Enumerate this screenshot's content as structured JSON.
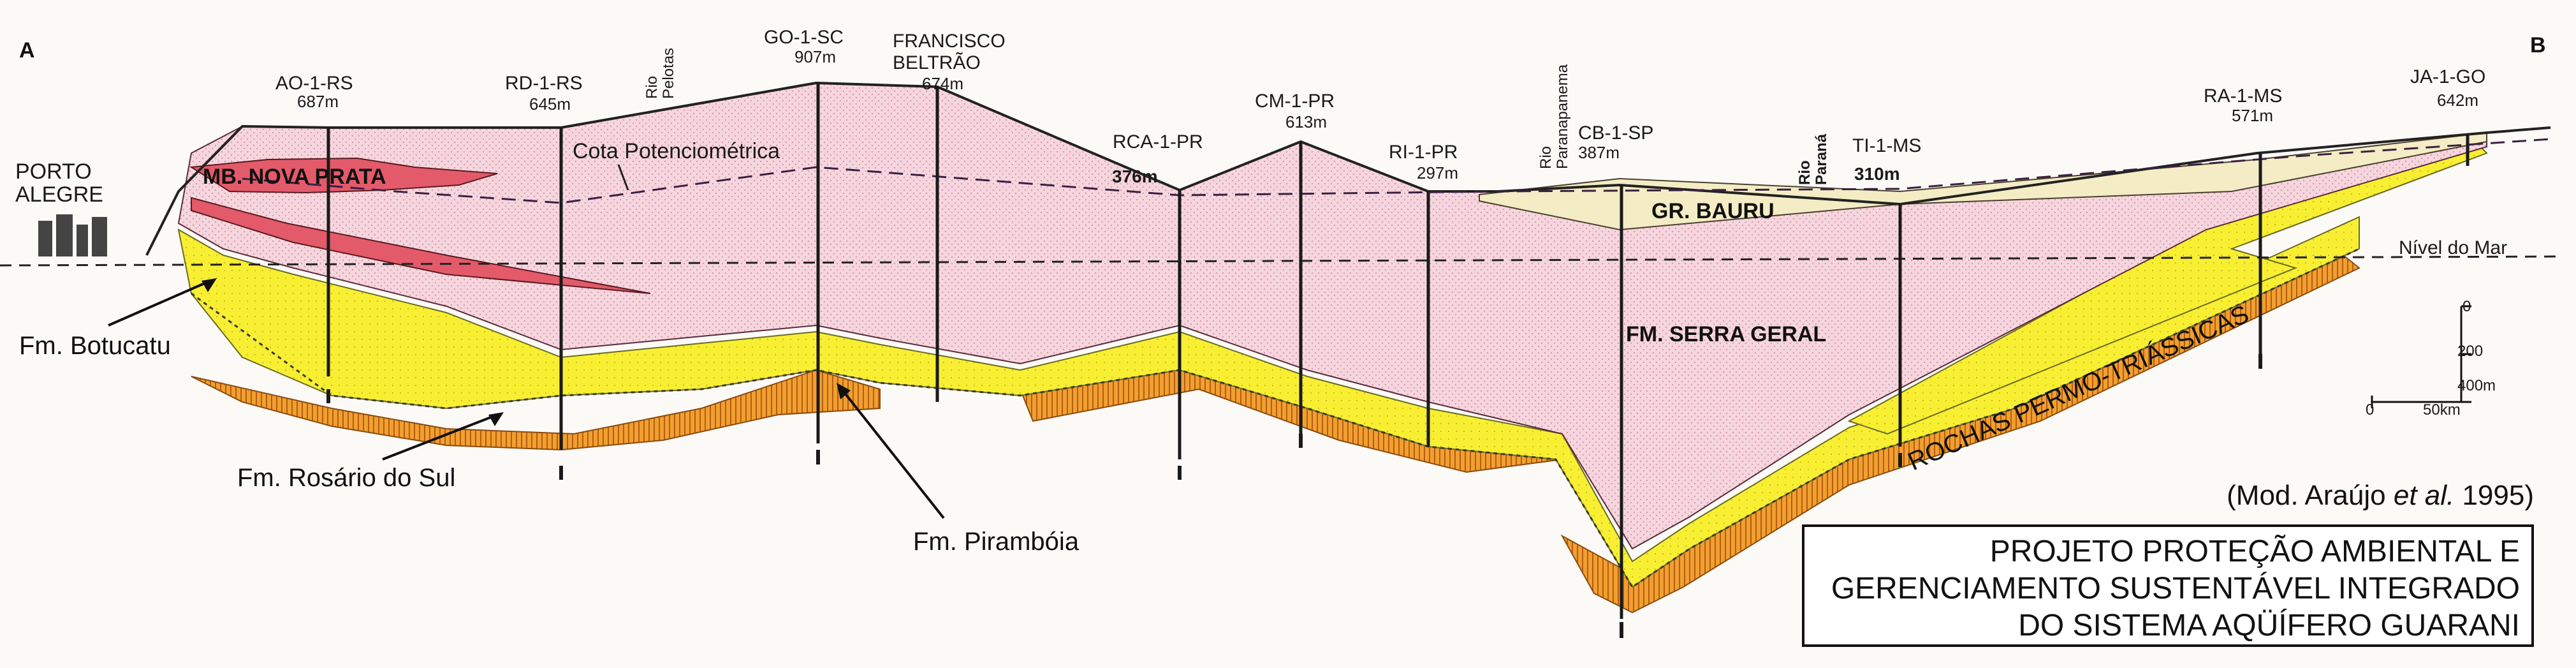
{
  "section": {
    "start_letter": "A",
    "end_letter": "B",
    "wells": [
      {
        "name": "AO-1-RS",
        "elevation": "687m"
      },
      {
        "name": "RD-1-RS",
        "elevation": "645m"
      },
      {
        "name": "GO-1-SC",
        "elevation": "907m"
      },
      {
        "name": "FRANCISCO",
        "name2": "BELTRÃO",
        "elevation": "674m"
      },
      {
        "name": "RCA-1-PR",
        "elevation": "376m"
      },
      {
        "name": "CM-1-PR",
        "elevation": "613m"
      },
      {
        "name": "RI-1-PR",
        "elevation": "297m"
      },
      {
        "name": "CB-1-SP",
        "elevation": "387m"
      },
      {
        "name": "TI-1-MS",
        "elevation": "310m"
      },
      {
        "name": "RA-1-MS",
        "elevation": "571m"
      },
      {
        "name": "JA-1-GO",
        "elevation": "642m"
      }
    ],
    "rivers": {
      "pelotas": [
        "Rio",
        "Pelotas"
      ],
      "paranapanema": [
        "Rio",
        "Paranapanema"
      ],
      "parana": [
        "Rio",
        "Paraná"
      ]
    },
    "city": [
      "PORTO",
      "ALEGRE"
    ],
    "units": {
      "nova_prata": "MB. NOVA PRATA",
      "bauru": "GR. BAURU",
      "serra_geral": "FM. SERRA GERAL",
      "permo": "ROCHAS PERMO-TRIÁSSICAS"
    },
    "annotations": {
      "cota": "Cota Potenciométrica",
      "nivel_mar": "Nível do Mar",
      "botucatu": "Fm. Botucatu",
      "rosario": "Fm. Rosário do Sul",
      "piramboia": "Fm. Pirambóia"
    },
    "scale": {
      "v0": "0",
      "v200": "200",
      "v400": "400m",
      "h0": "0",
      "h50": "50km"
    },
    "colors": {
      "basalt": "#f5d3dc",
      "aquifer": "#f7ee2a",
      "lower": "#ef9a1e",
      "nova_prata": "#e35a6a",
      "bauru": "#f4ecc4"
    }
  },
  "credit": {
    "prefix": "(Mod. Araújo ",
    "etal": "et al.",
    "suffix": " 1995)"
  },
  "title_box": {
    "line1": "PROJETO PROTEÇÃO AMBIENTAL E",
    "line2": "GERENCIAMENTO SUSTENTÁVEL INTEGRADO",
    "line3": "DO SISTEMA AQÜÍFERO GUARANI"
  }
}
